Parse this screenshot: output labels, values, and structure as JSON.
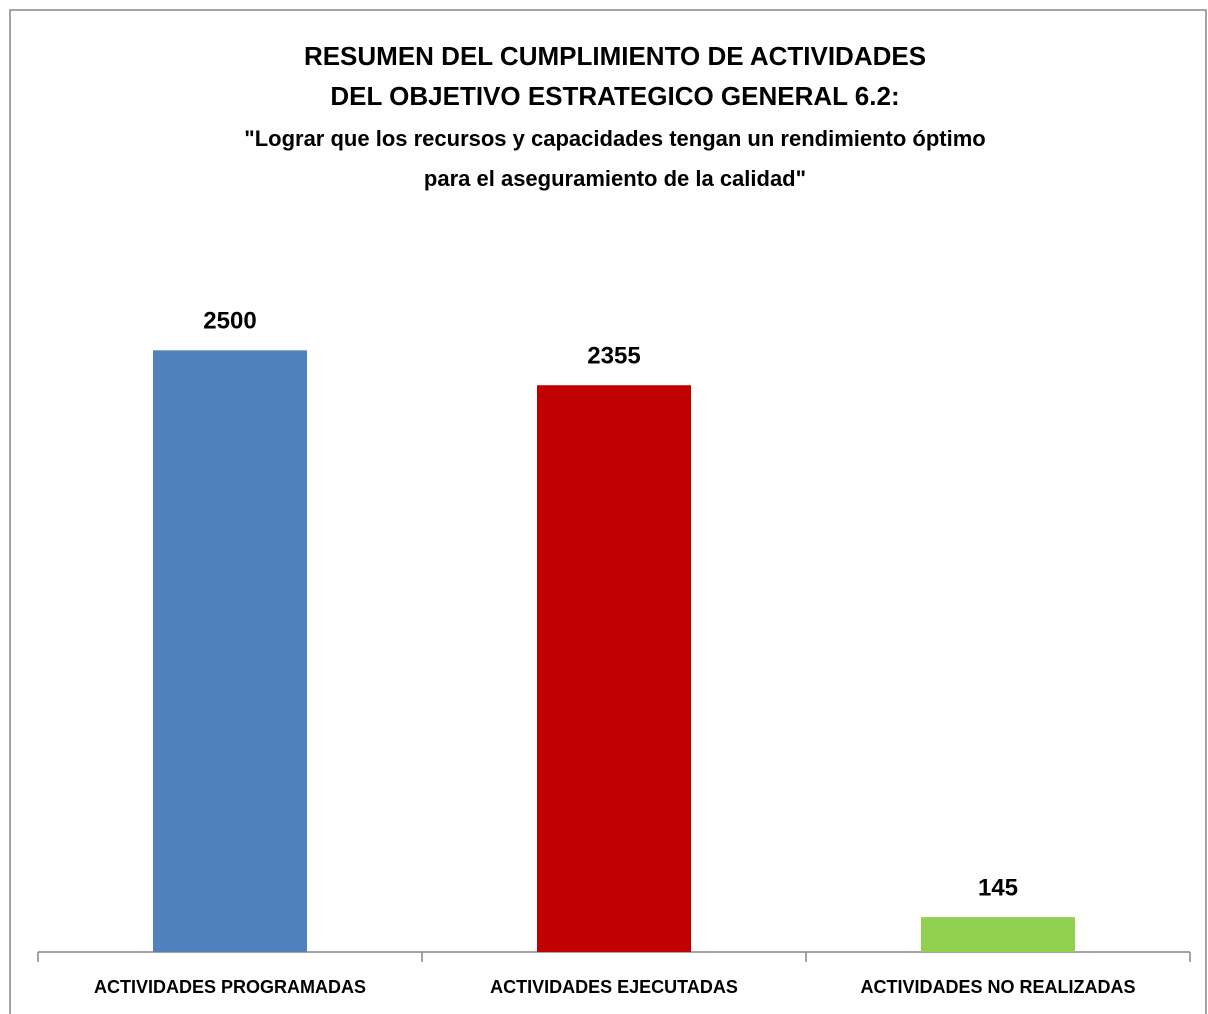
{
  "chart_data": {
    "type": "bar",
    "title": [
      "RESUMEN DEL CUMPLIMIENTO DE ACTIVIDADES",
      "DEL OBJETIVO ESTRATEGICO GENERAL 6.2:"
    ],
    "subtitle": [
      "\"Lograr que los recursos y capacidades tengan un rendimiento óptimo",
      "para el aseguramiento de la calidad\""
    ],
    "categories": [
      "ACTIVIDADES PROGRAMADAS",
      "ACTIVIDADES EJECUTADAS",
      "ACTIVIDADES NO REALIZADAS"
    ],
    "values": [
      2500,
      2355,
      145
    ],
    "colors": [
      "#4f81bd",
      "#c00000",
      "#92d050"
    ],
    "ylim": [
      0,
      3000
    ]
  }
}
